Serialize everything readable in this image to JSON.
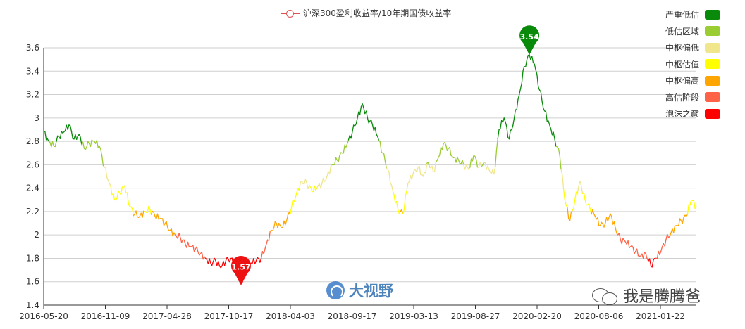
{
  "chart_data": {
    "type": "line",
    "title": "",
    "series": [
      {
        "name": "沪深300盈利收益率/10年期国债收益率",
        "values": [
          2.88,
          2.8,
          2.76,
          2.84,
          2.88,
          2.94,
          2.82,
          2.86,
          2.74,
          2.78,
          2.8,
          2.76,
          2.58,
          2.44,
          2.3,
          2.36,
          2.42,
          2.24,
          2.18,
          2.16,
          2.2,
          2.22,
          2.16,
          2.14,
          2.1,
          2.04,
          2.0,
          1.98,
          1.92,
          1.9,
          1.88,
          1.84,
          1.8,
          1.76,
          1.78,
          1.72,
          1.78,
          1.8,
          1.7,
          1.58,
          1.72,
          1.76,
          1.78,
          1.8,
          1.92,
          2.04,
          2.1,
          2.06,
          2.12,
          2.24,
          2.36,
          2.46,
          2.44,
          2.38,
          2.4,
          2.44,
          2.5,
          2.6,
          2.64,
          2.7,
          2.78,
          2.88,
          3.0,
          3.12,
          3.0,
          2.94,
          2.84,
          2.7,
          2.56,
          2.38,
          2.22,
          2.18,
          2.44,
          2.52,
          2.58,
          2.5,
          2.62,
          2.54,
          2.66,
          2.78,
          2.74,
          2.66,
          2.64,
          2.6,
          2.56,
          2.68,
          2.58,
          2.62,
          2.56,
          2.52,
          2.9,
          3.0,
          2.82,
          3.0,
          3.2,
          3.44,
          3.54,
          3.46,
          3.24,
          3.06,
          2.94,
          2.82,
          2.68,
          2.3,
          2.12,
          2.3,
          2.46,
          2.3,
          2.22,
          2.16,
          2.08,
          2.1,
          2.18,
          2.06,
          1.96,
          1.94,
          1.9,
          1.86,
          1.82,
          1.84,
          1.74,
          1.8,
          1.86,
          1.96,
          2.02,
          2.08,
          2.12,
          2.16,
          2.3,
          2.24
        ]
      }
    ],
    "x_ticks": [
      "2016-05-20",
      "2016-11-09",
      "2017-04-28",
      "2017-10-17",
      "2018-04-03",
      "2018-09-17",
      "2019-03-13",
      "2019-08-27",
      "2020-02-20",
      "2020-08-06",
      "2021-01-22"
    ],
    "y_ticks": [
      "1.4",
      "1.6",
      "1.8",
      "2",
      "2.2",
      "2.4",
      "2.6",
      "2.8",
      "3",
      "3.2",
      "3.4",
      "3.6"
    ],
    "ylim": [
      1.4,
      3.6
    ],
    "grid": true,
    "markers": [
      {
        "label": "3.54",
        "index": 96,
        "value": 3.54,
        "color": "#0a8a0a"
      },
      {
        "label": "1.57",
        "index": 39,
        "value": 1.57,
        "color": "#ee1111"
      }
    ],
    "valuation_bands": [
      {
        "label": "严重低估",
        "color": "#0a8a0a",
        "min": 2.8
      },
      {
        "label": "低估区域",
        "color": "#9acd32",
        "min": 2.6
      },
      {
        "label": "中枢偏低",
        "color": "#f0e68c",
        "min": 2.4
      },
      {
        "label": "中枢估值",
        "color": "#ffff00",
        "min": 2.2
      },
      {
        "label": "中枢偏高",
        "color": "#ffa500",
        "min": 2.0
      },
      {
        "label": "高估阶段",
        "color": "#ff6347",
        "min": 1.8
      },
      {
        "label": "泡沫之巅",
        "color": "#ff0000",
        "min": 0
      }
    ]
  },
  "watermarks": {
    "left_text": "大视野",
    "right_text": "我是腾腾爸"
  }
}
